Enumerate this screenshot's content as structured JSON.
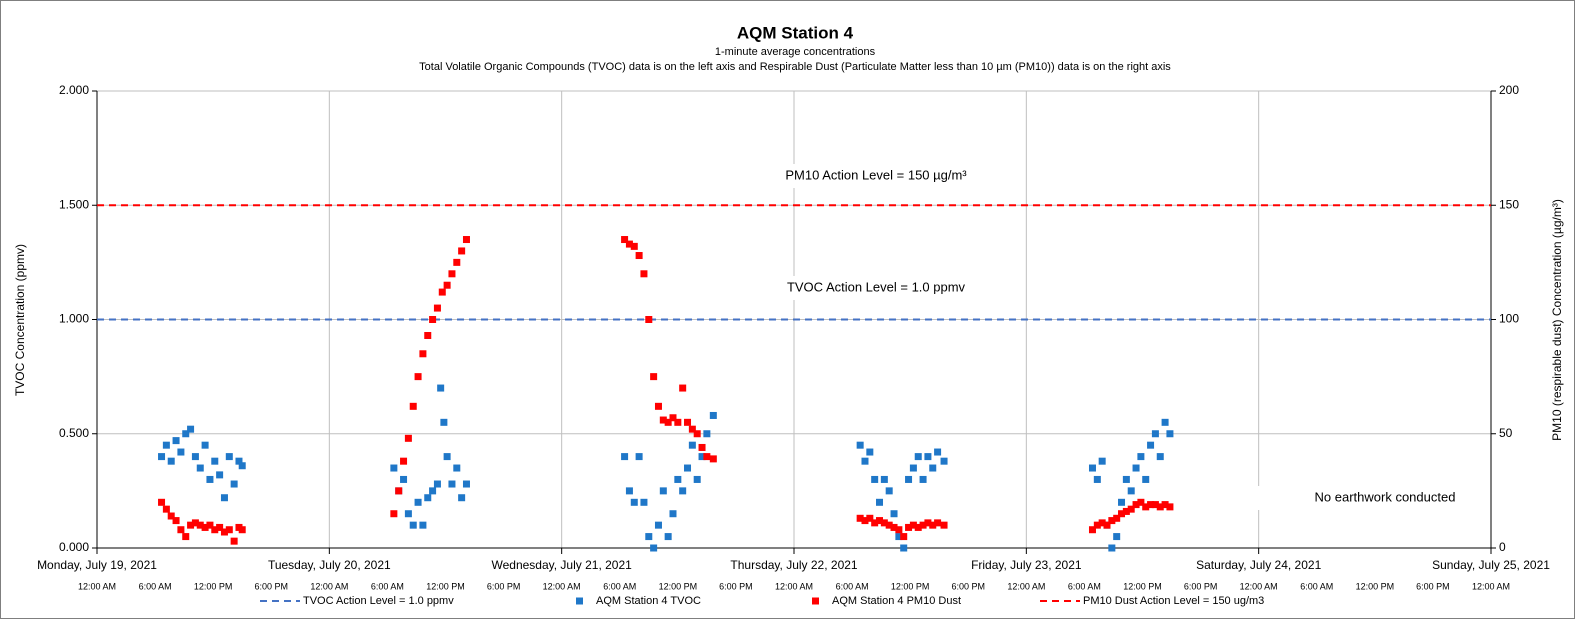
{
  "chart_data": {
    "type": "scatter",
    "title": "AQM Station 4",
    "subtitle": "1-minute average concentrations",
    "subtitle2": "Total Volatile Organic Compounds (TVOC) data is on the left axis and Respirable Dust (Particulate Matter less than 10 µm (PM10)) data is on the right axis",
    "ylabel": "TVOC Concentration (ppmv)",
    "y2label": "PM10 (respirable dust) Concentration (µg/m³)",
    "xlim": [
      "2021-07-19T00:00",
      "2021-07-25T00:00"
    ],
    "xticks": [
      {
        "value": "2021-07-19T00:00",
        "label": "Monday, July 19, 2021"
      },
      {
        "value": "2021-07-20T00:00",
        "label": "Tuesday, July 20, 2021"
      },
      {
        "value": "2021-07-21T00:00",
        "label": "Wednesday, July 21, 2021"
      },
      {
        "value": "2021-07-22T00:00",
        "label": "Thursday, July 22, 2021"
      },
      {
        "value": "2021-07-23T00:00",
        "label": "Friday, July 23, 2021"
      },
      {
        "value": "2021-07-24T00:00",
        "label": "Saturday, July 24, 2021"
      },
      {
        "value": "2021-07-25T00:00",
        "label": "Sunday, July 25, 2021"
      }
    ],
    "xticks_minor": [
      {
        "value": "2021-07-19T00:00",
        "label": "12:00 AM"
      },
      {
        "value": "2021-07-19T06:00",
        "label": "6:00 AM"
      },
      {
        "value": "2021-07-19T12:00",
        "label": "12:00 PM"
      },
      {
        "value": "2021-07-19T18:00",
        "label": "6:00 PM"
      },
      {
        "value": "2021-07-20T00:00",
        "label": "12:00 AM"
      },
      {
        "value": "2021-07-20T06:00",
        "label": "6:00 AM"
      },
      {
        "value": "2021-07-20T12:00",
        "label": "12:00 PM"
      },
      {
        "value": "2021-07-20T18:00",
        "label": "6:00 PM"
      },
      {
        "value": "2021-07-21T00:00",
        "label": "12:00 AM"
      },
      {
        "value": "2021-07-21T06:00",
        "label": "6:00 AM"
      },
      {
        "value": "2021-07-21T12:00",
        "label": "12:00 PM"
      },
      {
        "value": "2021-07-21T18:00",
        "label": "6:00 PM"
      },
      {
        "value": "2021-07-22T00:00",
        "label": "12:00 AM"
      },
      {
        "value": "2021-07-22T06:00",
        "label": "6:00 AM"
      },
      {
        "value": "2021-07-22T12:00",
        "label": "12:00 PM"
      },
      {
        "value": "2021-07-22T18:00",
        "label": "6:00 PM"
      },
      {
        "value": "2021-07-23T00:00",
        "label": "12:00 AM"
      },
      {
        "value": "2021-07-23T06:00",
        "label": "6:00 AM"
      },
      {
        "value": "2021-07-23T12:00",
        "label": "12:00 PM"
      },
      {
        "value": "2021-07-23T18:00",
        "label": "6:00 PM"
      },
      {
        "value": "2021-07-24T00:00",
        "label": "12:00 AM"
      },
      {
        "value": "2021-07-24T06:00",
        "label": "6:00 AM"
      },
      {
        "value": "2021-07-24T12:00",
        "label": "12:00 PM"
      },
      {
        "value": "2021-07-24T18:00",
        "label": "6:00 PM"
      },
      {
        "value": "2021-07-25T00:00",
        "label": "12:00 AM"
      }
    ],
    "ylim": [
      0,
      2
    ],
    "yticks": [
      {
        "value": 0,
        "label": "0.000"
      },
      {
        "value": 0.5,
        "label": "0.500"
      },
      {
        "value": 1,
        "label": "1.000"
      },
      {
        "value": 1.5,
        "label": "1.500"
      },
      {
        "value": 2,
        "label": "2.000"
      }
    ],
    "y2lim": [
      0,
      200
    ],
    "y2ticks": [
      0,
      50,
      100,
      150,
      200
    ],
    "grid": true,
    "hlines": [
      {
        "name": "TVOC Action Level = 1.0 ppmv",
        "value": 1,
        "color": "#4472c4",
        "axis": "y"
      },
      {
        "name": "PM10 Dust Action Level = 150 ug/m3",
        "value": 150,
        "color": "#ff0000",
        "axis": "y2"
      }
    ],
    "annotations": [
      "PM10 Action Level = 150 µg/m³",
      "TVOC Action Level = 1.0 ppmv",
      "No earthwork conducted"
    ],
    "series": [
      {
        "name": "AQM Station 4 TVOC",
        "color": "#1f77c8",
        "axis": "y",
        "x": [
          "2021-07-19T06:40",
          "2021-07-19T07:10",
          "2021-07-19T07:40",
          "2021-07-19T08:10",
          "2021-07-19T08:40",
          "2021-07-19T09:10",
          "2021-07-19T09:40",
          "2021-07-19T10:10",
          "2021-07-19T10:40",
          "2021-07-19T11:10",
          "2021-07-19T11:40",
          "2021-07-19T12:10",
          "2021-07-19T12:40",
          "2021-07-19T13:10",
          "2021-07-19T13:40",
          "2021-07-19T14:10",
          "2021-07-19T14:40",
          "2021-07-19T15:00",
          "2021-07-20T06:40",
          "2021-07-20T07:10",
          "2021-07-20T07:40",
          "2021-07-20T08:10",
          "2021-07-20T08:40",
          "2021-07-20T09:10",
          "2021-07-20T09:40",
          "2021-07-20T10:10",
          "2021-07-20T10:40",
          "2021-07-20T11:10",
          "2021-07-20T11:30",
          "2021-07-20T11:50",
          "2021-07-20T12:10",
          "2021-07-20T12:40",
          "2021-07-20T13:10",
          "2021-07-20T13:40",
          "2021-07-20T14:10",
          "2021-07-21T06:30",
          "2021-07-21T07:00",
          "2021-07-21T07:30",
          "2021-07-21T08:00",
          "2021-07-21T08:30",
          "2021-07-21T09:00",
          "2021-07-21T09:30",
          "2021-07-21T10:00",
          "2021-07-21T10:30",
          "2021-07-21T11:00",
          "2021-07-21T11:30",
          "2021-07-21T12:00",
          "2021-07-21T12:30",
          "2021-07-21T13:00",
          "2021-07-21T13:30",
          "2021-07-21T14:00",
          "2021-07-21T14:30",
          "2021-07-21T15:00",
          "2021-07-21T15:40",
          "2021-07-22T06:50",
          "2021-07-22T07:20",
          "2021-07-22T07:50",
          "2021-07-22T08:20",
          "2021-07-22T08:50",
          "2021-07-22T09:20",
          "2021-07-22T09:50",
          "2021-07-22T10:20",
          "2021-07-22T10:50",
          "2021-07-22T11:20",
          "2021-07-22T11:50",
          "2021-07-22T12:20",
          "2021-07-22T12:50",
          "2021-07-22T13:20",
          "2021-07-22T13:50",
          "2021-07-22T14:20",
          "2021-07-22T14:50",
          "2021-07-22T15:30",
          "2021-07-23T06:50",
          "2021-07-23T07:20",
          "2021-07-23T07:50",
          "2021-07-23T08:20",
          "2021-07-23T08:50",
          "2021-07-23T09:20",
          "2021-07-23T09:50",
          "2021-07-23T10:20",
          "2021-07-23T10:50",
          "2021-07-23T11:20",
          "2021-07-23T11:50",
          "2021-07-23T12:20",
          "2021-07-23T12:50",
          "2021-07-23T13:20",
          "2021-07-23T13:50",
          "2021-07-23T14:20",
          "2021-07-23T14:50"
        ],
        "values": [
          0.4,
          0.45,
          0.38,
          0.47,
          0.42,
          0.5,
          0.52,
          0.4,
          0.35,
          0.45,
          0.3,
          0.38,
          0.32,
          0.22,
          0.4,
          0.28,
          0.38,
          0.36,
          0.35,
          0.25,
          0.3,
          0.15,
          0.1,
          0.2,
          0.1,
          0.22,
          0.25,
          0.28,
          0.7,
          0.55,
          0.4,
          0.28,
          0.35,
          0.22,
          0.28,
          0.4,
          0.25,
          0.2,
          0.4,
          0.2,
          0.05,
          0.0,
          0.1,
          0.25,
          0.05,
          0.15,
          0.3,
          0.25,
          0.35,
          0.45,
          0.3,
          0.4,
          0.5,
          0.58,
          0.45,
          0.38,
          0.42,
          0.3,
          0.2,
          0.3,
          0.25,
          0.15,
          0.05,
          0.0,
          0.3,
          0.35,
          0.4,
          0.3,
          0.4,
          0.35,
          0.42,
          0.38,
          0.35,
          0.3,
          0.38,
          0.1,
          0.0,
          0.05,
          0.2,
          0.3,
          0.25,
          0.35,
          0.4,
          0.3,
          0.45,
          0.5,
          0.4,
          0.55,
          0.5
        ]
      },
      {
        "name": "AQM Station 4 PM10 Dust",
        "color": "#ff0000",
        "axis": "y2",
        "x": [
          "2021-07-19T06:40",
          "2021-07-19T07:10",
          "2021-07-19T07:40",
          "2021-07-19T08:10",
          "2021-07-19T08:40",
          "2021-07-19T09:10",
          "2021-07-19T09:40",
          "2021-07-19T10:10",
          "2021-07-19T10:40",
          "2021-07-19T11:10",
          "2021-07-19T11:40",
          "2021-07-19T12:10",
          "2021-07-19T12:40",
          "2021-07-19T13:10",
          "2021-07-19T13:40",
          "2021-07-19T14:10",
          "2021-07-19T14:40",
          "2021-07-19T15:00",
          "2021-07-20T06:40",
          "2021-07-20T07:10",
          "2021-07-20T07:40",
          "2021-07-20T08:10",
          "2021-07-20T08:40",
          "2021-07-20T09:10",
          "2021-07-20T09:40",
          "2021-07-20T10:10",
          "2021-07-20T10:40",
          "2021-07-20T11:10",
          "2021-07-20T11:40",
          "2021-07-20T12:10",
          "2021-07-20T12:40",
          "2021-07-20T13:10",
          "2021-07-20T13:40",
          "2021-07-20T14:10",
          "2021-07-21T06:30",
          "2021-07-21T07:00",
          "2021-07-21T07:30",
          "2021-07-21T08:00",
          "2021-07-21T08:30",
          "2021-07-21T09:00",
          "2021-07-21T09:30",
          "2021-07-21T10:00",
          "2021-07-21T10:30",
          "2021-07-21T11:00",
          "2021-07-21T11:30",
          "2021-07-21T12:00",
          "2021-07-21T12:30",
          "2021-07-21T13:00",
          "2021-07-21T13:30",
          "2021-07-21T14:00",
          "2021-07-21T14:30",
          "2021-07-21T15:00",
          "2021-07-21T15:40",
          "2021-07-22T06:50",
          "2021-07-22T07:20",
          "2021-07-22T07:50",
          "2021-07-22T08:20",
          "2021-07-22T08:50",
          "2021-07-22T09:20",
          "2021-07-22T09:50",
          "2021-07-22T10:20",
          "2021-07-22T10:50",
          "2021-07-22T11:20",
          "2021-07-22T11:50",
          "2021-07-22T12:20",
          "2021-07-22T12:50",
          "2021-07-22T13:20",
          "2021-07-22T13:50",
          "2021-07-22T14:20",
          "2021-07-22T14:50",
          "2021-07-22T15:30",
          "2021-07-23T06:50",
          "2021-07-23T07:20",
          "2021-07-23T07:50",
          "2021-07-23T08:20",
          "2021-07-23T08:50",
          "2021-07-23T09:20",
          "2021-07-23T09:50",
          "2021-07-23T10:20",
          "2021-07-23T10:50",
          "2021-07-23T11:20",
          "2021-07-23T11:50",
          "2021-07-23T12:20",
          "2021-07-23T12:50",
          "2021-07-23T13:20",
          "2021-07-23T13:50",
          "2021-07-23T14:20",
          "2021-07-23T14:50"
        ],
        "values": [
          20,
          17,
          14,
          12,
          8,
          5,
          10,
          11,
          10,
          9,
          10,
          8,
          9,
          7,
          8,
          3,
          9,
          8,
          15,
          25,
          38,
          48,
          62,
          75,
          85,
          93,
          100,
          105,
          112,
          115,
          120,
          125,
          130,
          135,
          135,
          133,
          132,
          128,
          120,
          100,
          75,
          62,
          56,
          55,
          57,
          55,
          70,
          55,
          52,
          50,
          44,
          40,
          39,
          13,
          12,
          13,
          11,
          12,
          11,
          10,
          9,
          8,
          5,
          9,
          10,
          9,
          10,
          11,
          10,
          11,
          10,
          8,
          10,
          11,
          10,
          12,
          13,
          15,
          16,
          17,
          19,
          20,
          18,
          19,
          19,
          18,
          19,
          18
        ]
      }
    ]
  }
}
